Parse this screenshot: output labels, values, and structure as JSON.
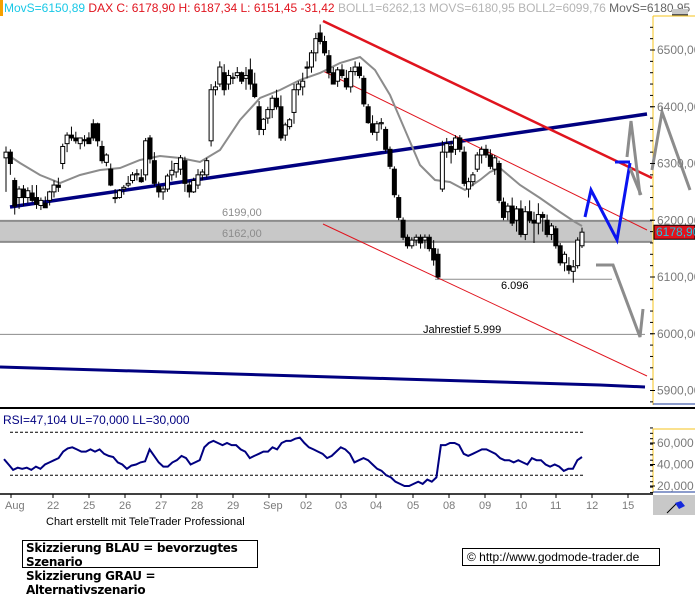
{
  "header": {
    "movs1_label": "MovS=6150,89",
    "dax_label": "DAX C: 6178,90 H: 6187,34 L: 6151,45 -31,42",
    "boll_label": "BOLL1=6262,13 MOVS=6180,95 BOLL2=6099,76",
    "movs2_label": "MovS=6180,95"
  },
  "colors": {
    "accent_cyan": "#19c8e6",
    "price_red": "#e0141e",
    "trend_navy": "#000080",
    "scenario_blue": "#0a14f0",
    "scenario_grey": "#8c8c8c",
    "zone_grey": "#c8c8c8",
    "axis_yellow": "#f5c31e"
  },
  "price_axis": {
    "ticks": [
      {
        "label": "6500,00",
        "value": 6500
      },
      {
        "label": "6400,00",
        "value": 6400
      },
      {
        "label": "6300,00",
        "value": 6300
      },
      {
        "label": "6200,00",
        "value": 6200
      },
      {
        "label": "6100,00",
        "value": 6100
      },
      {
        "label": "6000,00",
        "value": 6000
      },
      {
        "label": "5900,00",
        "value": 5900
      }
    ],
    "current_price_label": "6178,90"
  },
  "rsi_panel": {
    "label": "RSI=47,104 UL=70,000 LL=30,000",
    "ticks": [
      {
        "label": "60,000",
        "value": 60
      },
      {
        "label": "40,000",
        "value": 40
      },
      {
        "label": "20,000",
        "value": 20
      }
    ]
  },
  "x_axis": {
    "labels": [
      "Aug",
      "22",
      "25",
      "26",
      "27",
      "28",
      "29",
      "Sep",
      "02",
      "03",
      "04",
      "05",
      "08",
      "09",
      "10",
      "11",
      "12",
      "15"
    ]
  },
  "annotations": {
    "zone_upper": "6199,00",
    "zone_lower": "6162,00",
    "support_low": "6.096",
    "year_low": "Jahrestief 5.999"
  },
  "footer": {
    "credit": "Chart erstellt mit TeleTrader Professional",
    "scenario_blue": "Skizzierung BLAU = bevorzugtes Szenario",
    "scenario_grey": "Skizzierung GRAU = Alternativszenario",
    "copyright": "© http://www.godmode-trader.de"
  },
  "chart_data": {
    "type": "candlestick",
    "title": "DAX",
    "xlabel": "",
    "ylabel": "",
    "ylim": [
      5870,
      6560
    ],
    "x_tick_labels": [
      "Aug",
      "22",
      "25",
      "26",
      "27",
      "28",
      "29",
      "Sep",
      "02",
      "03",
      "04",
      "05",
      "08",
      "09",
      "10",
      "11",
      "12",
      "15"
    ],
    "last": {
      "close": 6178.9,
      "high": 6187.34,
      "low": 6151.45,
      "change": -31.42
    },
    "indicators": {
      "MovS_short": 6150.89,
      "BOLL1": 6262.13,
      "MOVS": 6180.95,
      "BOLL2": 6099.76,
      "MovS_long": 6180.95
    },
    "levels": [
      {
        "name": "resistance zone top",
        "value": 6199.0
      },
      {
        "name": "resistance zone bottom",
        "value": 6162.0
      },
      {
        "name": "support",
        "value": 6096
      },
      {
        "name": "Jahrestief",
        "value": 5999
      }
    ],
    "candles": [
      [
        6310,
        6330,
        6250,
        6320
      ],
      [
        6320,
        6325,
        6280,
        6300
      ],
      [
        6270,
        6275,
        6210,
        6225
      ],
      [
        6240,
        6260,
        6220,
        6255
      ],
      [
        6255,
        6262,
        6225,
        6240
      ],
      [
        6240,
        6258,
        6230,
        6252
      ],
      [
        6248,
        6262,
        6232,
        6235
      ],
      [
        6240,
        6262,
        6220,
        6228
      ],
      [
        6226,
        6240,
        6218,
        6235
      ],
      [
        6230,
        6242,
        6222,
        6222
      ],
      [
        6235,
        6252,
        6226,
        6250
      ],
      [
        6250,
        6270,
        6240,
        6262
      ],
      [
        6262,
        6275,
        6250,
        6258
      ],
      [
        6300,
        6335,
        6290,
        6330
      ],
      [
        6335,
        6355,
        6320,
        6350
      ],
      [
        6350,
        6365,
        6340,
        6345
      ],
      [
        6345,
        6356,
        6335,
        6340
      ],
      [
        6335,
        6345,
        6325,
        6345
      ],
      [
        6342,
        6350,
        6330,
        6340
      ],
      [
        6345,
        6355,
        6335,
        6335
      ],
      [
        6370,
        6378,
        6340,
        6345
      ],
      [
        6370,
        6372,
        6330,
        6340
      ],
      [
        6330,
        6340,
        6300,
        6305
      ],
      [
        6302,
        6318,
        6295,
        6315
      ],
      [
        6290,
        6300,
        6260,
        6262
      ],
      [
        6240,
        6255,
        6230,
        6240
      ],
      [
        6240,
        6255,
        6238,
        6252
      ],
      [
        6255,
        6262,
        6245,
        6258
      ],
      [
        6262,
        6278,
        6258,
        6265
      ],
      [
        6270,
        6285,
        6265,
        6280
      ],
      [
        6280,
        6290,
        6270,
        6282
      ],
      [
        6275,
        6290,
        6266,
        6268
      ],
      [
        6280,
        6345,
        6270,
        6340
      ],
      [
        6345,
        6350,
        6300,
        6308
      ],
      [
        6305,
        6320,
        6260,
        6265
      ],
      [
        6260,
        6268,
        6240,
        6250
      ],
      [
        6250,
        6260,
        6236,
        6255
      ],
      [
        6255,
        6282,
        6250,
        6278
      ],
      [
        6280,
        6305,
        6270,
        6288
      ],
      [
        6285,
        6300,
        6275,
        6300
      ],
      [
        6290,
        6315,
        6280,
        6310
      ],
      [
        6305,
        6312,
        6250,
        6265
      ],
      [
        6262,
        6270,
        6240,
        6250
      ],
      [
        6250,
        6275,
        6248,
        6270
      ],
      [
        6262,
        6290,
        6255,
        6280
      ],
      [
        6280,
        6290,
        6270,
        6285
      ],
      [
        6280,
        6310,
        6275,
        6305
      ],
      [
        6340,
        6440,
        6330,
        6430
      ],
      [
        6430,
        6445,
        6420,
        6435
      ],
      [
        6440,
        6480,
        6435,
        6470
      ],
      [
        6460,
        6475,
        6420,
        6430
      ],
      [
        6440,
        6465,
        6430,
        6455
      ],
      [
        6450,
        6460,
        6440,
        6452
      ],
      [
        6455,
        6470,
        6450,
        6460
      ],
      [
        6460,
        6462,
        6440,
        6445
      ],
      [
        6450,
        6470,
        6430,
        6455
      ],
      [
        6465,
        6485,
        6430,
        6440
      ],
      [
        6440,
        6460,
        6415,
        6418
      ],
      [
        6400,
        6410,
        6350,
        6360
      ],
      [
        6360,
        6380,
        6350,
        6378
      ],
      [
        6380,
        6400,
        6370,
        6395
      ],
      [
        6395,
        6420,
        6380,
        6415
      ],
      [
        6415,
        6430,
        6395,
        6400
      ],
      [
        6400,
        6420,
        6340,
        6345
      ],
      [
        6350,
        6372,
        6340,
        6368
      ],
      [
        6365,
        6380,
        6360,
        6377
      ],
      [
        6390,
        6440,
        6370,
        6430
      ],
      [
        6430,
        6445,
        6420,
        6440
      ],
      [
        6435,
        6460,
        6420,
        6445
      ],
      [
        6470,
        6480,
        6450,
        6468
      ],
      [
        6470,
        6500,
        6460,
        6495
      ],
      [
        6495,
        6530,
        6480,
        6520
      ],
      [
        6530,
        6545,
        6510,
        6515
      ],
      [
        6515,
        6525,
        6490,
        6495
      ],
      [
        6490,
        6500,
        6450,
        6460
      ],
      [
        6460,
        6470,
        6440,
        6440
      ],
      [
        6445,
        6470,
        6435,
        6465
      ],
      [
        6465,
        6475,
        6450,
        6455
      ],
      [
        6450,
        6465,
        6430,
        6435
      ],
      [
        6435,
        6470,
        6425,
        6462
      ],
      [
        6462,
        6480,
        6455,
        6470
      ],
      [
        6470,
        6478,
        6450,
        6455
      ],
      [
        6450,
        6455,
        6400,
        6405
      ],
      [
        6400,
        6405,
        6370,
        6372
      ],
      [
        6370,
        6385,
        6350,
        6355
      ],
      [
        6355,
        6375,
        6340,
        6370
      ],
      [
        6370,
        6380,
        6360,
        6372
      ],
      [
        6360,
        6365,
        6320,
        6325
      ],
      [
        6325,
        6330,
        6290,
        6295
      ],
      [
        6290,
        6295,
        6240,
        6245
      ],
      [
        6240,
        6245,
        6200,
        6205
      ],
      [
        6200,
        6205,
        6165,
        6170
      ],
      [
        6170,
        6175,
        6150,
        6155
      ],
      [
        6155,
        6170,
        6150,
        6165
      ],
      [
        6165,
        6175,
        6155,
        6170
      ],
      [
        6170,
        6175,
        6150,
        6160
      ],
      [
        6165,
        6175,
        6150,
        6170
      ],
      [
        6170,
        6175,
        6145,
        6150
      ],
      [
        6150,
        6165,
        6120,
        6130
      ],
      [
        6140,
        6150,
        6096,
        6100
      ],
      [
        6255,
        6340,
        6250,
        6320
      ],
      [
        6320,
        6345,
        6310,
        6335
      ],
      [
        6330,
        6340,
        6300,
        6320
      ],
      [
        6325,
        6350,
        6315,
        6345
      ],
      [
        6345,
        6350,
        6320,
        6325
      ],
      [
        6320,
        6330,
        6260,
        6265
      ],
      [
        6255,
        6275,
        6240,
        6268
      ],
      [
        6268,
        6285,
        6260,
        6280
      ],
      [
        6290,
        6320,
        6285,
        6315
      ],
      [
        6315,
        6330,
        6300,
        6325
      ],
      [
        6325,
        6333,
        6310,
        6315
      ],
      [
        6315,
        6325,
        6290,
        6295
      ],
      [
        6290,
        6315,
        6280,
        6310
      ],
      [
        6300,
        6305,
        6230,
        6235
      ],
      [
        6232,
        6240,
        6200,
        6205
      ],
      [
        6215,
        6230,
        6200,
        6225
      ],
      [
        6225,
        6240,
        6190,
        6195
      ],
      [
        6200,
        6225,
        6180,
        6220
      ],
      [
        6220,
        6235,
        6170,
        6175
      ],
      [
        6175,
        6225,
        6165,
        6215
      ],
      [
        6215,
        6235,
        6195,
        6200
      ],
      [
        6200,
        6215,
        6160,
        6195
      ],
      [
        6195,
        6230,
        6175,
        6210
      ],
      [
        6210,
        6215,
        6180,
        6205
      ],
      [
        6200,
        6210,
        6170,
        6175
      ],
      [
        6175,
        6195,
        6165,
        6190
      ],
      [
        6185,
        6190,
        6150,
        6155
      ],
      [
        6155,
        6160,
        6120,
        6125
      ],
      [
        6125,
        6145,
        6110,
        6140
      ],
      [
        6120,
        6135,
        6105,
        6112
      ],
      [
        6110,
        6130,
        6090,
        6118
      ],
      [
        6120,
        6170,
        6115,
        6165
      ],
      [
        6155,
        6187,
        6151,
        6179
      ]
    ],
    "rsi": {
      "upper": 70,
      "lower": 30,
      "last": 47.104,
      "values": [
        45,
        40,
        35,
        37,
        36,
        37,
        35,
        38,
        36,
        40,
        42,
        44,
        46,
        52,
        55,
        56,
        54,
        52,
        52,
        54,
        52,
        54,
        50,
        48,
        47,
        42,
        40,
        36,
        39,
        40,
        42,
        43,
        54,
        48,
        42,
        38,
        38,
        42,
        44,
        48,
        46,
        40,
        42,
        44,
        56,
        60,
        62,
        60,
        58,
        60,
        58,
        58,
        54,
        52,
        46,
        48,
        50,
        52,
        52,
        56,
        54,
        60,
        62,
        62,
        64,
        65,
        60,
        56,
        54,
        52,
        50,
        46,
        48,
        52,
        56,
        54,
        50,
        42,
        44,
        46,
        44,
        40,
        36,
        34,
        30,
        28,
        24,
        22,
        20,
        20,
        22,
        24,
        22,
        26,
        24,
        28,
        58,
        58,
        60,
        60,
        58,
        50,
        48,
        50,
        52,
        54,
        54,
        52,
        50,
        46,
        44,
        44,
        42,
        44,
        42,
        40,
        46,
        44,
        44,
        40,
        38,
        40,
        38,
        34,
        36,
        36,
        44,
        47
      ]
    },
    "trendlines": [
      {
        "name": "rising support (navy)",
        "from": [
          0,
          6222
        ],
        "to": [
          1,
          6385
        ]
      },
      {
        "name": "falling resistance (red thick)",
        "from": [
          0.5,
          6545
        ],
        "to": [
          1,
          6275
        ]
      },
      {
        "name": "channel top (red thin)",
        "from": [
          0.49,
          6460
        ],
        "to": [
          1,
          6185
        ]
      },
      {
        "name": "channel bottom (red thin)",
        "from": [
          0.49,
          6195
        ],
        "to": [
          1,
          5925
        ]
      },
      {
        "name": "long-term support (navy)",
        "from": [
          0,
          5950
        ],
        "to": [
          1,
          5915
        ]
      }
    ],
    "scenarios": {
      "blue_preferred": [
        [
          6200,
          6250
        ],
        [
          6250,
          6162
        ],
        [
          6162,
          6300
        ]
      ],
      "grey_alternative": [
        [
          6120,
          6000
        ],
        [
          6000,
          6055
        ],
        [
          6300,
          6390
        ],
        [
          6390,
          6245
        ]
      ]
    }
  }
}
